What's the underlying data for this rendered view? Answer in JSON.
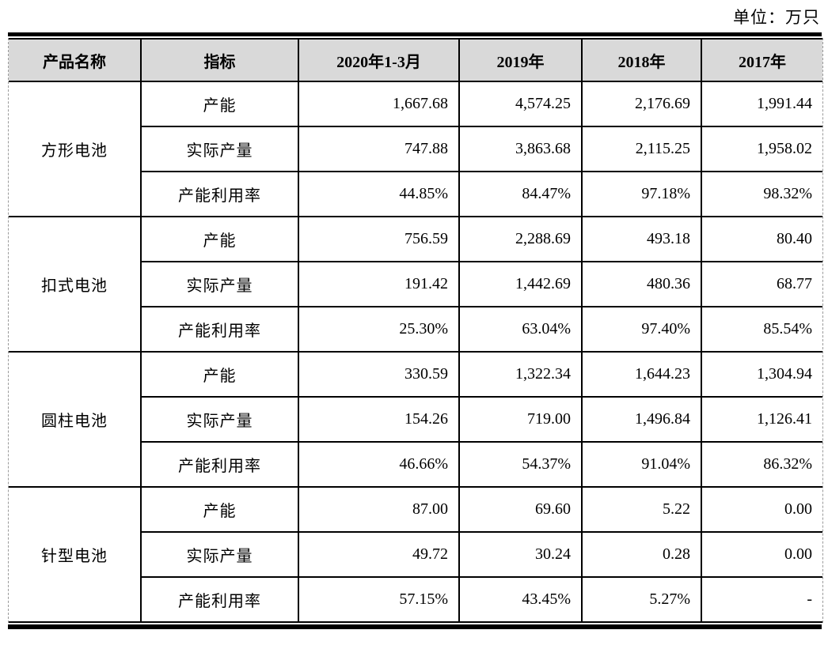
{
  "unit_label": "单位：万只",
  "colors": {
    "header_bg": "#d9d9d9",
    "border": "#000000",
    "outer_edge_dash": "#9a9a9a",
    "text": "#000000"
  },
  "table": {
    "columns": [
      {
        "label": "产品名称"
      },
      {
        "label": "指标"
      },
      {
        "label": "2020年1-3月"
      },
      {
        "label": "2019年"
      },
      {
        "label": "2018年"
      },
      {
        "label": "2017年"
      }
    ],
    "groups": [
      {
        "product": "方形电池",
        "rows": [
          {
            "indicator": "产能",
            "values": [
              "1,667.68",
              "4,574.25",
              "2,176.69",
              "1,991.44"
            ]
          },
          {
            "indicator": "实际产量",
            "values": [
              "747.88",
              "3,863.68",
              "2,115.25",
              "1,958.02"
            ]
          },
          {
            "indicator": "产能利用率",
            "values": [
              "44.85%",
              "84.47%",
              "97.18%",
              "98.32%"
            ]
          }
        ]
      },
      {
        "product": "扣式电池",
        "rows": [
          {
            "indicator": "产能",
            "values": [
              "756.59",
              "2,288.69",
              "493.18",
              "80.40"
            ]
          },
          {
            "indicator": "实际产量",
            "values": [
              "191.42",
              "1,442.69",
              "480.36",
              "68.77"
            ]
          },
          {
            "indicator": "产能利用率",
            "values": [
              "25.30%",
              "63.04%",
              "97.40%",
              "85.54%"
            ]
          }
        ]
      },
      {
        "product": "圆柱电池",
        "rows": [
          {
            "indicator": "产能",
            "values": [
              "330.59",
              "1,322.34",
              "1,644.23",
              "1,304.94"
            ]
          },
          {
            "indicator": "实际产量",
            "values": [
              "154.26",
              "719.00",
              "1,496.84",
              "1,126.41"
            ]
          },
          {
            "indicator": "产能利用率",
            "values": [
              "46.66%",
              "54.37%",
              "91.04%",
              "86.32%"
            ]
          }
        ]
      },
      {
        "product": "针型电池",
        "rows": [
          {
            "indicator": "产能",
            "values": [
              "87.00",
              "69.60",
              "5.22",
              "0.00"
            ]
          },
          {
            "indicator": "实际产量",
            "values": [
              "49.72",
              "30.24",
              "0.28",
              "0.00"
            ]
          },
          {
            "indicator": "产能利用率",
            "values": [
              "57.15%",
              "43.45%",
              "5.27%",
              "-"
            ]
          }
        ]
      }
    ]
  }
}
